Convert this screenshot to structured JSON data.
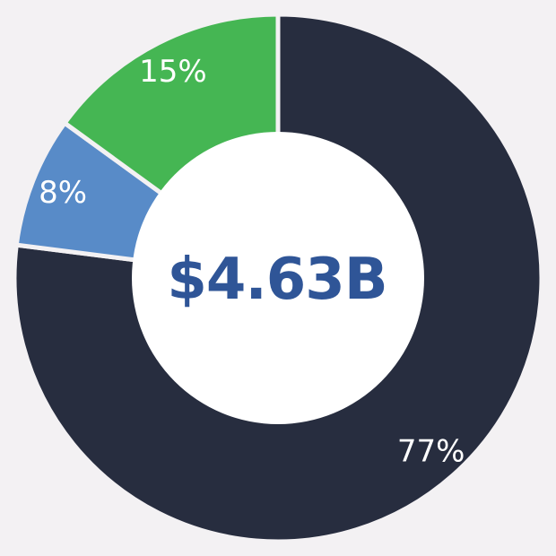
{
  "chart_data": {
    "type": "pie",
    "variant": "donut",
    "center_label": "$4.63B",
    "slices": [
      {
        "label": "77%",
        "value": 77,
        "color": "#272d3f"
      },
      {
        "label": "8%",
        "value": 8,
        "color": "#588bc8"
      },
      {
        "label": "15%",
        "value": 15,
        "color": "#45b653"
      }
    ],
    "start_angle": "12 o'clock",
    "direction": "clockwise",
    "separator_color": "#f3f1f3",
    "center_fill": "#ffffff",
    "center_text_color": "#2f5597",
    "legend": "none"
  }
}
